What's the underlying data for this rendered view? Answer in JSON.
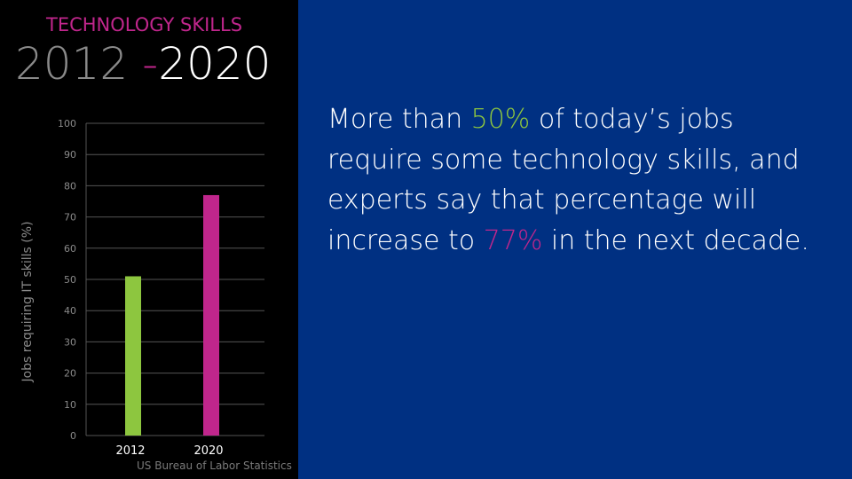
{
  "header": {
    "kicker": "TECHNOLOGY SKILLS",
    "year_start": "2012",
    "separator": " -",
    "year_end": "2020"
  },
  "chart_data": {
    "type": "bar",
    "title": "",
    "categories": [
      "2012",
      "2020"
    ],
    "values": [
      51,
      77
    ],
    "colors": [
      "#8dc63f",
      "#c0268c"
    ],
    "ylabel": "Jobs requiring IT skills (%)",
    "xlabel": "",
    "ylim": [
      0,
      100
    ],
    "yticks": [
      0,
      10,
      20,
      30,
      40,
      50,
      60,
      70,
      80,
      90,
      100
    ],
    "grid": true
  },
  "source": "US Bureau of Labor Statistics",
  "text": {
    "part1": "More than ",
    "stat1": "50%",
    "part2": " of today’s jobs require some technology skills, and experts say that percentage will increase to ",
    "stat2": "77%",
    "part3": " in the next decade."
  },
  "colors": {
    "background_left": "#000000",
    "background_right": "#003082",
    "accent_pink": "#c0268c",
    "accent_green": "#8dc63f"
  }
}
